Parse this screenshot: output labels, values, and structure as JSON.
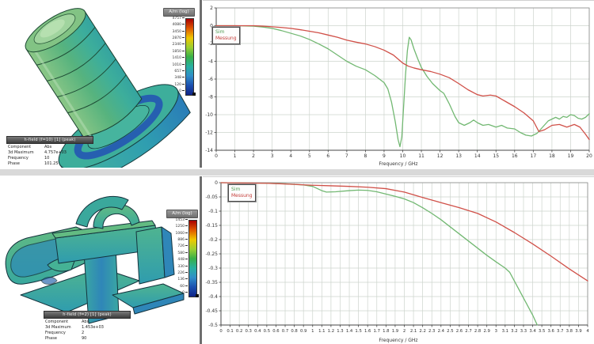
{
  "panels": {
    "top_model": {
      "colorbar": {
        "title": "A/m (log)",
        "gradient": [
          "#a80000",
          "#e05800",
          "#efc800",
          "#9ccf30",
          "#38b048",
          "#28b0a0",
          "#2f8ec8",
          "#1c50b0",
          "#102488"
        ],
        "ticks": [
          "4757",
          "4080",
          "3450",
          "2870",
          "2340",
          "1850",
          "1410",
          "1010",
          "657",
          "348",
          "120",
          "0"
        ]
      },
      "infobox": {
        "title": "h-field (f=10) [1] (peak)",
        "rows": [
          [
            "Component",
            "Abs"
          ],
          [
            "3d Maximum",
            "4.757e+03"
          ],
          [
            "Frequency",
            "10"
          ],
          [
            "Phase",
            "101.25"
          ]
        ]
      }
    },
    "bottom_model": {
      "colorbar": {
        "title": "A/m (log)",
        "gradient": [
          "#a80000",
          "#e05800",
          "#efc800",
          "#9ccf30",
          "#38b048",
          "#28b0a0",
          "#2f8ec8",
          "#1c50b0",
          "#102488"
        ],
        "ticks": [
          "1453",
          "1250",
          "1060",
          "886",
          "726",
          "580",
          "448",
          "330",
          "226",
          "136",
          "60",
          "0"
        ]
      },
      "infobox": {
        "title": "h-field (f=2) [1] (peak)",
        "rows": [
          [
            "Component",
            "Abs"
          ],
          [
            "3d Maximum",
            "1.453e+03"
          ],
          [
            "Frequency",
            "2"
          ],
          [
            "Phase",
            "90"
          ]
        ]
      }
    }
  },
  "chart_data": [
    {
      "type": "line",
      "title": "",
      "xlabel": "Frequency / GHz",
      "ylabel": "",
      "xlim": [
        0,
        20
      ],
      "ylim": [
        -14,
        2
      ],
      "xticks": [
        0,
        1,
        2,
        3,
        4,
        5,
        6,
        7,
        8,
        9,
        10,
        11,
        12,
        13,
        14,
        15,
        16,
        17,
        18,
        19,
        20
      ],
      "yticks": [
        2,
        0,
        -2,
        -4,
        -6,
        -8,
        -10,
        -12,
        -14
      ],
      "grid": true,
      "legend_position": "top-left",
      "series": [
        {
          "name": "Sim",
          "color": "#72b872",
          "points": [
            [
              0,
              0
            ],
            [
              1,
              0
            ],
            [
              2,
              -0.05
            ],
            [
              2.5,
              -0.15
            ],
            [
              3,
              -0.3
            ],
            [
              3.5,
              -0.55
            ],
            [
              4,
              -0.85
            ],
            [
              4.5,
              -1.15
            ],
            [
              5,
              -1.55
            ],
            [
              5.5,
              -2.05
            ],
            [
              6,
              -2.6
            ],
            [
              6.5,
              -3.3
            ],
            [
              7,
              -4.0
            ],
            [
              7.5,
              -4.55
            ],
            [
              8,
              -4.95
            ],
            [
              8.5,
              -5.6
            ],
            [
              9,
              -6.4
            ],
            [
              9.2,
              -7.1
            ],
            [
              9.4,
              -8.6
            ],
            [
              9.6,
              -10.8
            ],
            [
              9.75,
              -12.8
            ],
            [
              9.85,
              -13.6
            ],
            [
              9.95,
              -12.5
            ],
            [
              10.05,
              -9.0
            ],
            [
              10.15,
              -5.5
            ],
            [
              10.25,
              -2.8
            ],
            [
              10.35,
              -1.3
            ],
            [
              10.45,
              -1.6
            ],
            [
              10.6,
              -2.6
            ],
            [
              10.8,
              -3.7
            ],
            [
              11,
              -4.7
            ],
            [
              11.3,
              -5.7
            ],
            [
              11.6,
              -6.5
            ],
            [
              12,
              -7.3
            ],
            [
              12.2,
              -7.6
            ],
            [
              12.5,
              -8.8
            ],
            [
              12.8,
              -10.2
            ],
            [
              13,
              -10.9
            ],
            [
              13.3,
              -11.2
            ],
            [
              13.6,
              -10.9
            ],
            [
              13.8,
              -10.6
            ],
            [
              14,
              -10.9
            ],
            [
              14.3,
              -11.2
            ],
            [
              14.6,
              -11.1
            ],
            [
              15,
              -11.4
            ],
            [
              15.3,
              -11.2
            ],
            [
              15.6,
              -11.5
            ],
            [
              16,
              -11.6
            ],
            [
              16.3,
              -12.0
            ],
            [
              16.6,
              -12.3
            ],
            [
              16.9,
              -12.4
            ],
            [
              17.2,
              -12.1
            ],
            [
              17.5,
              -11.4
            ],
            [
              17.8,
              -10.7
            ],
            [
              18,
              -10.5
            ],
            [
              18.2,
              -10.3
            ],
            [
              18.4,
              -10.5
            ],
            [
              18.6,
              -10.2
            ],
            [
              18.8,
              -10.3
            ],
            [
              19,
              -10.0
            ],
            [
              19.2,
              -10.1
            ],
            [
              19.4,
              -10.4
            ],
            [
              19.6,
              -10.5
            ],
            [
              19.8,
              -10.3
            ],
            [
              20,
              -9.9
            ]
          ]
        },
        {
          "name": "Messung",
          "color": "#d05048",
          "points": [
            [
              0,
              0
            ],
            [
              1,
              0
            ],
            [
              2,
              0
            ],
            [
              2.5,
              -0.05
            ],
            [
              3,
              -0.12
            ],
            [
              3.5,
              -0.2
            ],
            [
              4,
              -0.3
            ],
            [
              4.5,
              -0.45
            ],
            [
              5,
              -0.62
            ],
            [
              5.5,
              -0.8
            ],
            [
              6,
              -1.05
            ],
            [
              6.5,
              -1.3
            ],
            [
              7,
              -1.62
            ],
            [
              7.5,
              -1.85
            ],
            [
              8,
              -2.05
            ],
            [
              8.5,
              -2.35
            ],
            [
              9,
              -2.75
            ],
            [
              9.5,
              -3.3
            ],
            [
              10,
              -4.2
            ],
            [
              10.3,
              -4.55
            ],
            [
              10.6,
              -4.75
            ],
            [
              11,
              -4.95
            ],
            [
              11.5,
              -5.15
            ],
            [
              12,
              -5.45
            ],
            [
              12.5,
              -5.85
            ],
            [
              13,
              -6.5
            ],
            [
              13.5,
              -7.2
            ],
            [
              14,
              -7.75
            ],
            [
              14.3,
              -7.9
            ],
            [
              14.7,
              -7.8
            ],
            [
              15,
              -7.9
            ],
            [
              15.5,
              -8.5
            ],
            [
              16,
              -9.1
            ],
            [
              16.5,
              -9.8
            ],
            [
              17,
              -10.7
            ],
            [
              17.3,
              -11.9
            ],
            [
              17.6,
              -11.7
            ],
            [
              18,
              -11.2
            ],
            [
              18.4,
              -11.1
            ],
            [
              18.8,
              -11.4
            ],
            [
              19.2,
              -11.1
            ],
            [
              19.5,
              -11.4
            ],
            [
              19.8,
              -12.2
            ],
            [
              20,
              -12.8
            ]
          ]
        }
      ]
    },
    {
      "type": "line",
      "title": "",
      "xlabel": "Frequency / GHz",
      "ylabel": "",
      "xlim": [
        0,
        4
      ],
      "ylim": [
        -0.5,
        0
      ],
      "xticks": [
        0,
        0.1,
        0.2,
        0.3,
        0.4,
        0.5,
        0.6,
        0.7,
        0.8,
        0.9,
        1,
        1.1,
        1.2,
        1.3,
        1.4,
        1.5,
        1.6,
        1.7,
        1.8,
        1.9,
        2,
        2.1,
        2.2,
        2.3,
        2.4,
        2.5,
        2.6,
        2.7,
        2.8,
        2.9,
        3,
        3.1,
        3.2,
        3.3,
        3.4,
        3.5,
        3.6,
        3.7,
        3.8,
        3.9,
        4
      ],
      "yticks": [
        0,
        -0.05,
        -0.1,
        -0.15,
        -0.2,
        -0.25,
        -0.3,
        -0.35,
        -0.4,
        -0.45,
        -0.5
      ],
      "grid": true,
      "legend_position": "top-left",
      "series": [
        {
          "name": "Sim",
          "color": "#72b872",
          "points": [
            [
              0,
              0
            ],
            [
              0.5,
              -0.002
            ],
            [
              0.7,
              -0.004
            ],
            [
              0.9,
              -0.008
            ],
            [
              1,
              -0.013
            ],
            [
              1.1,
              -0.028
            ],
            [
              1.15,
              -0.033
            ],
            [
              1.25,
              -0.032
            ],
            [
              1.4,
              -0.028
            ],
            [
              1.5,
              -0.026
            ],
            [
              1.6,
              -0.027
            ],
            [
              1.7,
              -0.032
            ],
            [
              1.8,
              -0.04
            ],
            [
              1.9,
              -0.048
            ],
            [
              2,
              -0.057
            ],
            [
              2.1,
              -0.07
            ],
            [
              2.2,
              -0.088
            ],
            [
              2.3,
              -0.108
            ],
            [
              2.4,
              -0.13
            ],
            [
              2.5,
              -0.155
            ],
            [
              2.6,
              -0.18
            ],
            [
              2.7,
              -0.205
            ],
            [
              2.8,
              -0.23
            ],
            [
              2.9,
              -0.255
            ],
            [
              3,
              -0.278
            ],
            [
              3.1,
              -0.3
            ],
            [
              3.15,
              -0.315
            ],
            [
              3.2,
              -0.345
            ],
            [
              3.3,
              -0.405
            ],
            [
              3.4,
              -0.465
            ],
            [
              3.45,
              -0.5
            ]
          ]
        },
        {
          "name": "Messung",
          "color": "#d05048",
          "points": [
            [
              0,
              0
            ],
            [
              0.5,
              -0.002
            ],
            [
              0.8,
              -0.006
            ],
            [
              1,
              -0.009
            ],
            [
              1.2,
              -0.011
            ],
            [
              1.4,
              -0.013
            ],
            [
              1.6,
              -0.016
            ],
            [
              1.8,
              -0.021
            ],
            [
              2,
              -0.033
            ],
            [
              2.2,
              -0.052
            ],
            [
              2.4,
              -0.07
            ],
            [
              2.6,
              -0.088
            ],
            [
              2.8,
              -0.108
            ],
            [
              3,
              -0.138
            ],
            [
              3.2,
              -0.175
            ],
            [
              3.4,
              -0.215
            ],
            [
              3.6,
              -0.258
            ],
            [
              3.8,
              -0.303
            ],
            [
              4,
              -0.345
            ]
          ]
        }
      ]
    }
  ]
}
